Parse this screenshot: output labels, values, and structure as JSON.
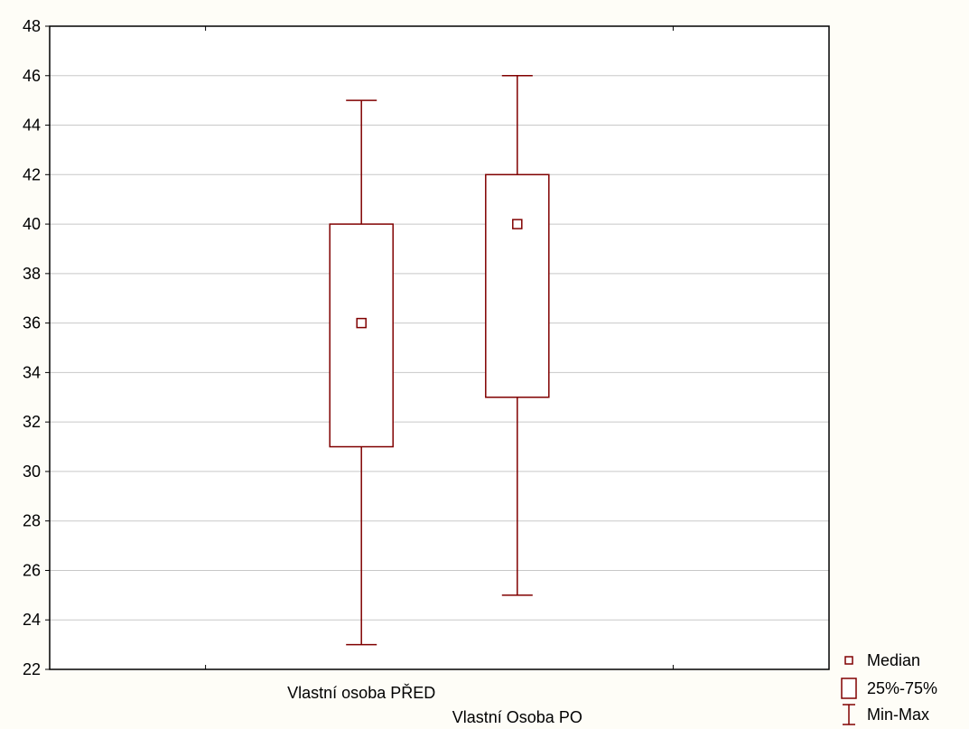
{
  "chart_data": {
    "type": "boxplot",
    "title": "",
    "xlabel": "",
    "ylabel": "",
    "ylim": [
      22,
      48
    ],
    "yticks": [
      22,
      24,
      26,
      28,
      30,
      32,
      34,
      36,
      38,
      40,
      42,
      44,
      46,
      48
    ],
    "grid": true,
    "categories": [
      "Vlastní osoba PŘED",
      "Vlastní  Osoba PO"
    ],
    "series": [
      {
        "category": "Vlastní osoba PŘED",
        "min": 23,
        "q1": 31,
        "median": 36,
        "q3": 40,
        "max": 45
      },
      {
        "category": "Vlastní  Osoba PO",
        "min": 25,
        "q1": 33,
        "median": 40,
        "q3": 42,
        "max": 46
      }
    ],
    "legend": {
      "position": "bottom-right",
      "items": [
        {
          "label": "Median",
          "symbol": "small-square"
        },
        {
          "label": "25%-75%",
          "symbol": "box"
        },
        {
          "label": "Min-Max",
          "symbol": "whisker"
        }
      ]
    },
    "colors": {
      "series": "#800000",
      "grid": "#c8c8c8",
      "background": "#fefdf7",
      "axis": "#000000"
    }
  }
}
